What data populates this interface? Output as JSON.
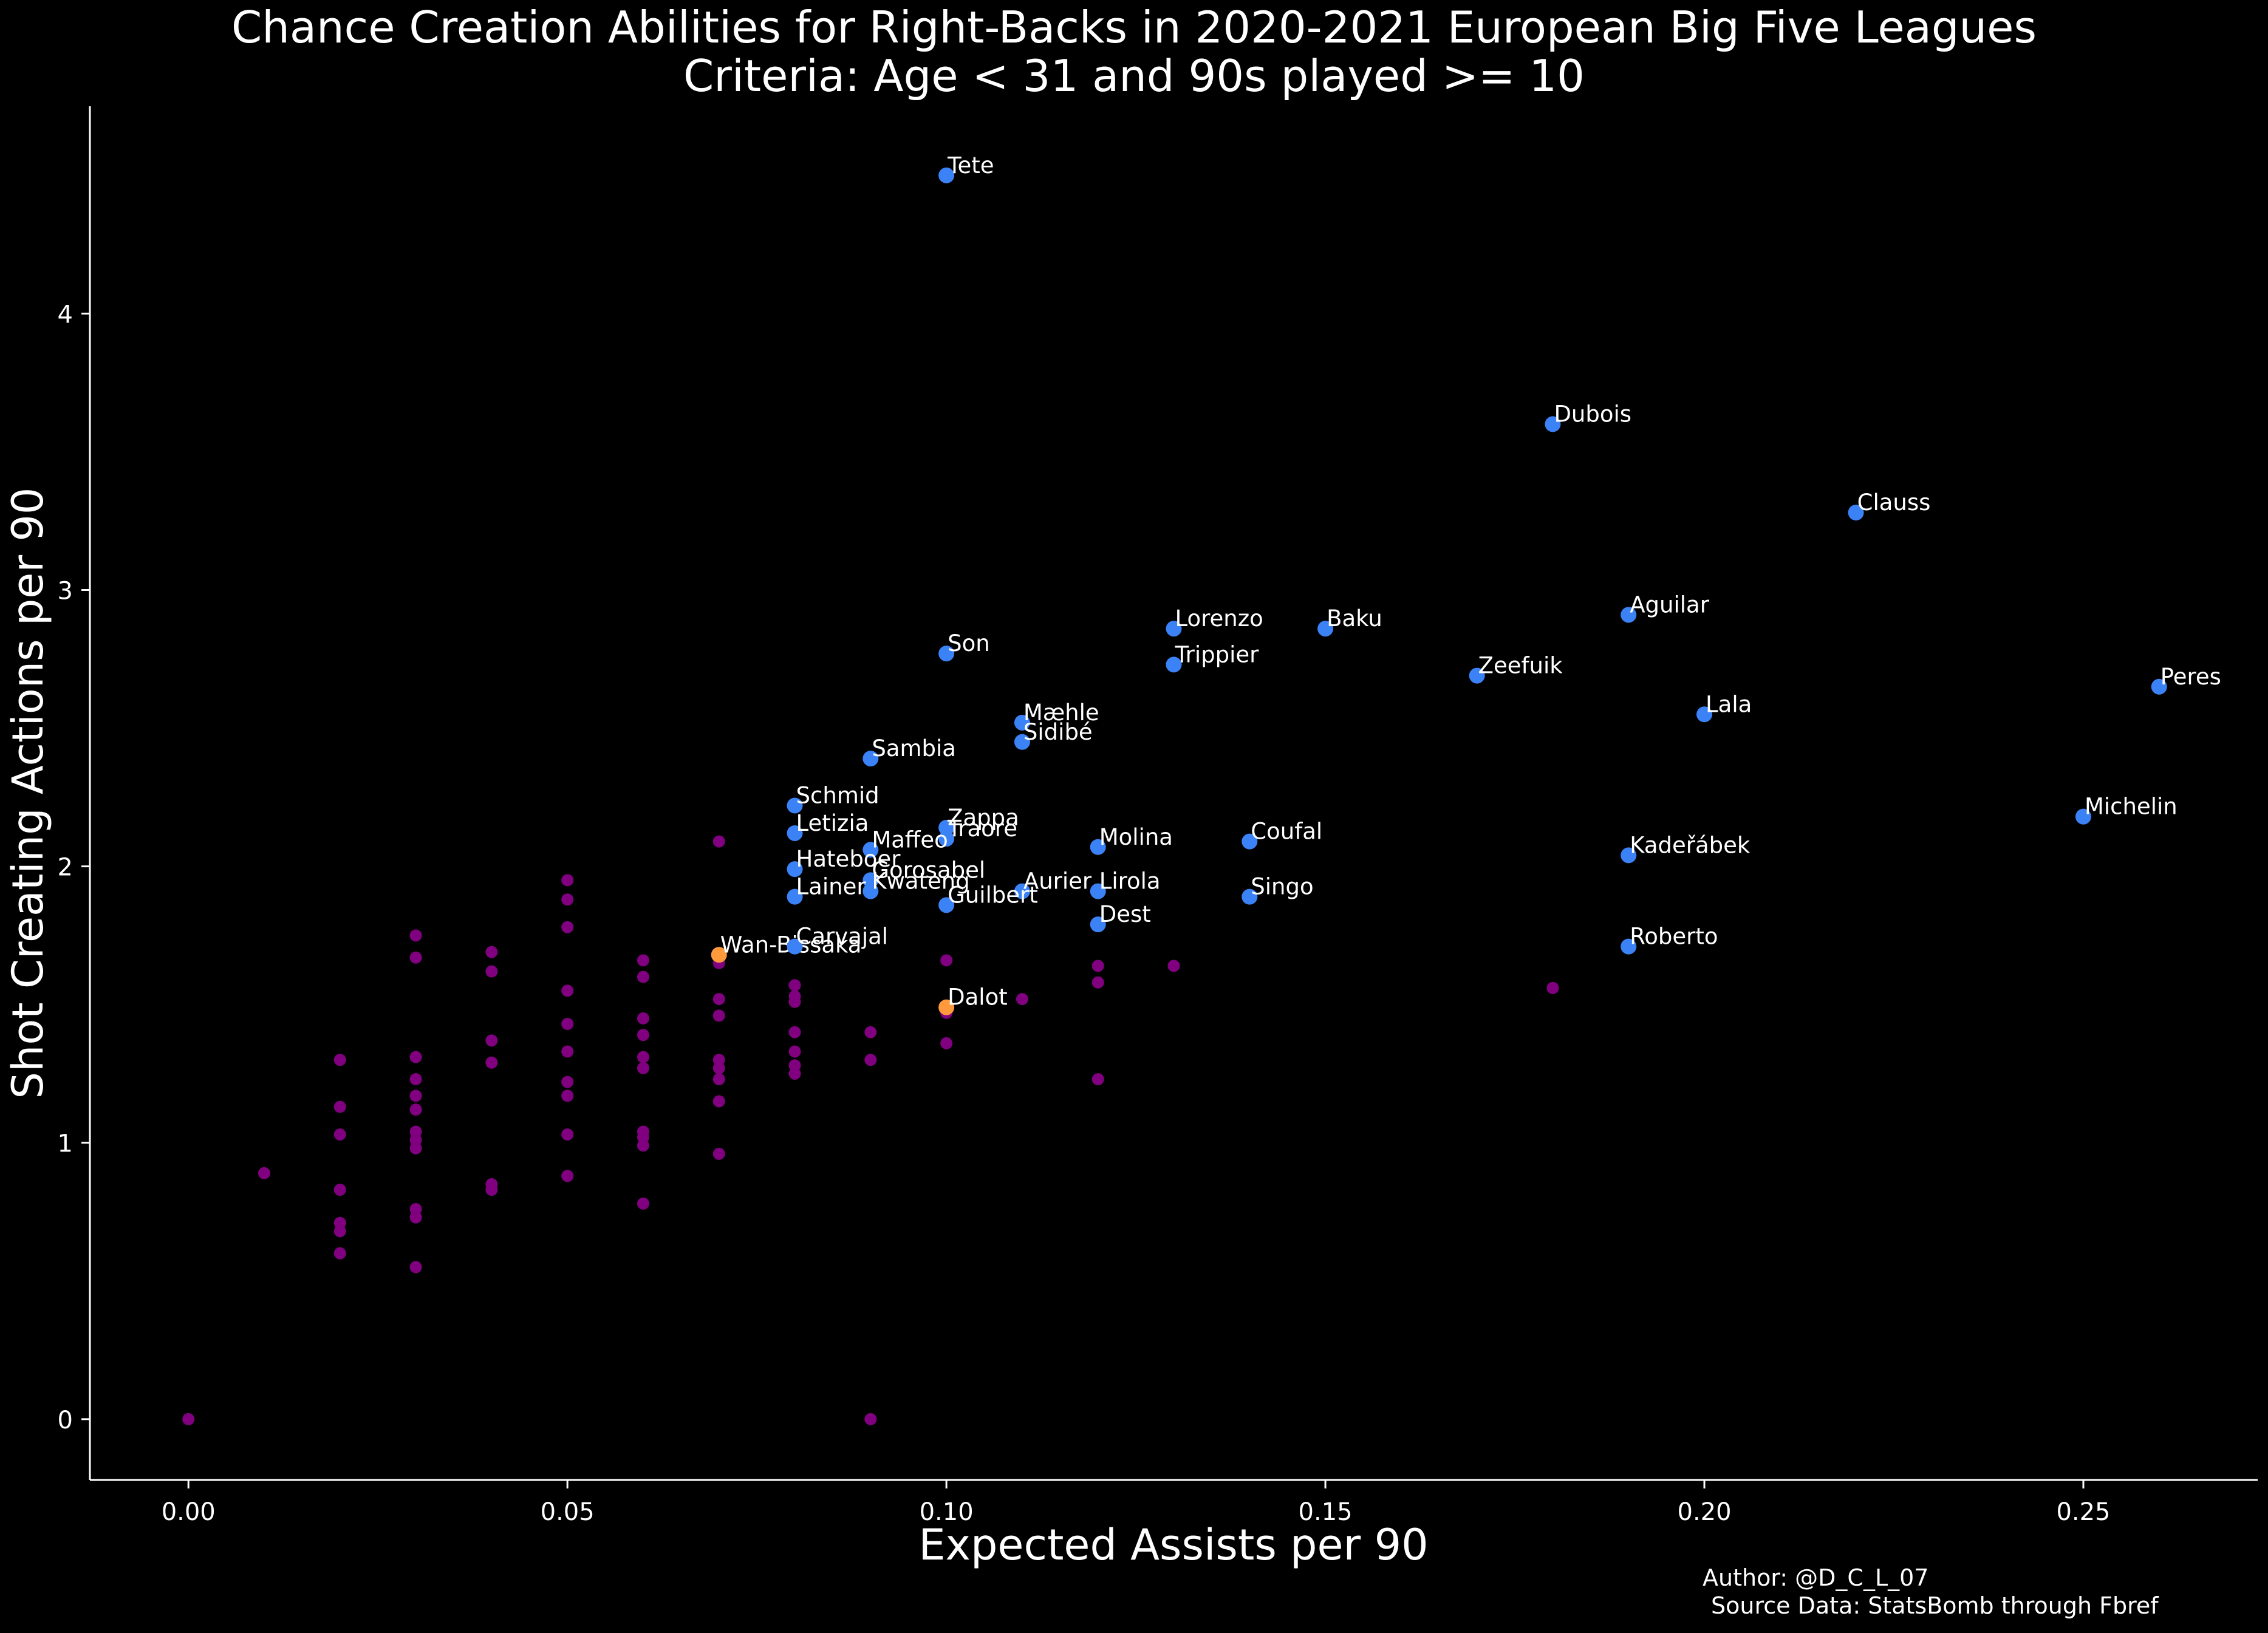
{
  "chart_data": {
    "type": "scatter",
    "title_line1": "Chance Creation Abilities for Right-Backs in 2020-2021 European Big Five Leagues",
    "title_line2": "Criteria: Age < 31 and 90s played >= 10",
    "xlabel": "Expected Assists per 90",
    "ylabel": "Shot Creating Actions per 90",
    "xlim": [
      -0.013,
      0.273
    ],
    "ylim": [
      -0.22,
      4.75
    ],
    "xticks": [
      0.0,
      0.05,
      0.1,
      0.15,
      0.2,
      0.25
    ],
    "xtick_labels": [
      "0.00",
      "0.05",
      "0.10",
      "0.15",
      "0.20",
      "0.25"
    ],
    "yticks": [
      0,
      1,
      2,
      3,
      4
    ],
    "ytick_labels": [
      "0",
      "1",
      "2",
      "3",
      "4"
    ],
    "grid": false,
    "colors": {
      "background": "#000000",
      "other_players": "#800080",
      "highlighted": "#3b82f6",
      "special": "#ff9a3c",
      "text": "#ffffff"
    },
    "highlighted_players": [
      {
        "name": "Tete",
        "x": 0.1,
        "y": 4.5
      },
      {
        "name": "Dubois",
        "x": 0.18,
        "y": 3.6
      },
      {
        "name": "Clauss",
        "x": 0.22,
        "y": 3.28
      },
      {
        "name": "Aguilar",
        "x": 0.19,
        "y": 2.91
      },
      {
        "name": "Lorenzo",
        "x": 0.13,
        "y": 2.86
      },
      {
        "name": "Baku",
        "x": 0.15,
        "y": 2.86
      },
      {
        "name": "Son",
        "x": 0.1,
        "y": 2.77
      },
      {
        "name": "Trippier",
        "x": 0.13,
        "y": 2.73
      },
      {
        "name": "Zeefuik",
        "x": 0.17,
        "y": 2.69
      },
      {
        "name": "Peres",
        "x": 0.26,
        "y": 2.65
      },
      {
        "name": "Lala",
        "x": 0.2,
        "y": 2.55
      },
      {
        "name": "Mæhle",
        "x": 0.11,
        "y": 2.52
      },
      {
        "name": "Sidibé",
        "x": 0.11,
        "y": 2.45
      },
      {
        "name": "Sambia",
        "x": 0.09,
        "y": 2.39
      },
      {
        "name": "Schmid",
        "x": 0.08,
        "y": 2.22
      },
      {
        "name": "Michelin",
        "x": 0.25,
        "y": 2.18
      },
      {
        "name": "Zappa",
        "x": 0.1,
        "y": 2.14
      },
      {
        "name": "Letizia",
        "x": 0.08,
        "y": 2.12
      },
      {
        "name": "Traore",
        "x": 0.1,
        "y": 2.1
      },
      {
        "name": "Coufal",
        "x": 0.14,
        "y": 2.09
      },
      {
        "name": "Molina",
        "x": 0.12,
        "y": 2.07
      },
      {
        "name": "Maffeo",
        "x": 0.09,
        "y": 2.06
      },
      {
        "name": "Kadeřábek",
        "x": 0.19,
        "y": 2.04
      },
      {
        "name": "Hateboer",
        "x": 0.08,
        "y": 1.99
      },
      {
        "name": "Gorosabel",
        "x": 0.09,
        "y": 1.95
      },
      {
        "name": "Kwateng",
        "x": 0.09,
        "y": 1.91
      },
      {
        "name": "Aurier",
        "x": 0.11,
        "y": 1.91
      },
      {
        "name": "Lirola",
        "x": 0.12,
        "y": 1.91
      },
      {
        "name": "Lainer",
        "x": 0.08,
        "y": 1.89
      },
      {
        "name": "Singo",
        "x": 0.14,
        "y": 1.89
      },
      {
        "name": "Guilbert",
        "x": 0.1,
        "y": 1.86
      },
      {
        "name": "Dest",
        "x": 0.12,
        "y": 1.79
      },
      {
        "name": "Roberto",
        "x": 0.19,
        "y": 1.71
      },
      {
        "name": "Carvajal",
        "x": 0.08,
        "y": 1.71
      }
    ],
    "special_players": [
      {
        "name": "Wan-Bissaka",
        "x": 0.07,
        "y": 1.68
      },
      {
        "name": "Dalot",
        "x": 0.1,
        "y": 1.49
      }
    ],
    "other_players": [
      [
        0.0,
        0.0
      ],
      [
        0.01,
        0.89
      ],
      [
        0.02,
        1.3
      ],
      [
        0.02,
        1.13
      ],
      [
        0.02,
        1.03
      ],
      [
        0.02,
        0.83
      ],
      [
        0.02,
        0.71
      ],
      [
        0.02,
        0.68
      ],
      [
        0.02,
        0.6
      ],
      [
        0.03,
        1.75
      ],
      [
        0.03,
        1.67
      ],
      [
        0.03,
        1.31
      ],
      [
        0.03,
        1.23
      ],
      [
        0.03,
        1.17
      ],
      [
        0.03,
        1.12
      ],
      [
        0.03,
        1.04
      ],
      [
        0.03,
        1.01
      ],
      [
        0.03,
        0.98
      ],
      [
        0.03,
        0.76
      ],
      [
        0.03,
        0.73
      ],
      [
        0.03,
        0.55
      ],
      [
        0.04,
        1.69
      ],
      [
        0.04,
        1.62
      ],
      [
        0.04,
        1.37
      ],
      [
        0.04,
        1.29
      ],
      [
        0.04,
        0.85
      ],
      [
        0.04,
        0.83
      ],
      [
        0.05,
        1.95
      ],
      [
        0.05,
        1.88
      ],
      [
        0.05,
        1.78
      ],
      [
        0.05,
        1.55
      ],
      [
        0.05,
        1.43
      ],
      [
        0.05,
        1.33
      ],
      [
        0.05,
        1.22
      ],
      [
        0.05,
        1.17
      ],
      [
        0.05,
        1.03
      ],
      [
        0.05,
        0.88
      ],
      [
        0.06,
        1.66
      ],
      [
        0.06,
        1.6
      ],
      [
        0.06,
        1.45
      ],
      [
        0.06,
        1.39
      ],
      [
        0.06,
        1.31
      ],
      [
        0.06,
        1.27
      ],
      [
        0.06,
        1.04
      ],
      [
        0.06,
        1.02
      ],
      [
        0.06,
        0.99
      ],
      [
        0.06,
        0.78
      ],
      [
        0.07,
        2.09
      ],
      [
        0.07,
        1.65
      ],
      [
        0.07,
        1.52
      ],
      [
        0.07,
        1.46
      ],
      [
        0.07,
        1.3
      ],
      [
        0.07,
        1.27
      ],
      [
        0.07,
        1.23
      ],
      [
        0.07,
        1.15
      ],
      [
        0.07,
        0.96
      ],
      [
        0.08,
        1.57
      ],
      [
        0.08,
        1.53
      ],
      [
        0.08,
        1.51
      ],
      [
        0.08,
        1.4
      ],
      [
        0.08,
        1.33
      ],
      [
        0.08,
        1.28
      ],
      [
        0.08,
        1.25
      ],
      [
        0.09,
        1.4
      ],
      [
        0.09,
        1.3
      ],
      [
        0.09,
        0.0
      ],
      [
        0.1,
        1.66
      ],
      [
        0.1,
        1.47
      ],
      [
        0.1,
        1.36
      ],
      [
        0.11,
        1.52
      ],
      [
        0.12,
        1.64
      ],
      [
        0.12,
        1.58
      ],
      [
        0.12,
        1.23
      ],
      [
        0.13,
        1.64
      ],
      [
        0.18,
        1.56
      ]
    ]
  },
  "footer": {
    "author": "Author: @D_C_L_07",
    "source": "Source Data: StatsBomb through Fbref"
  }
}
